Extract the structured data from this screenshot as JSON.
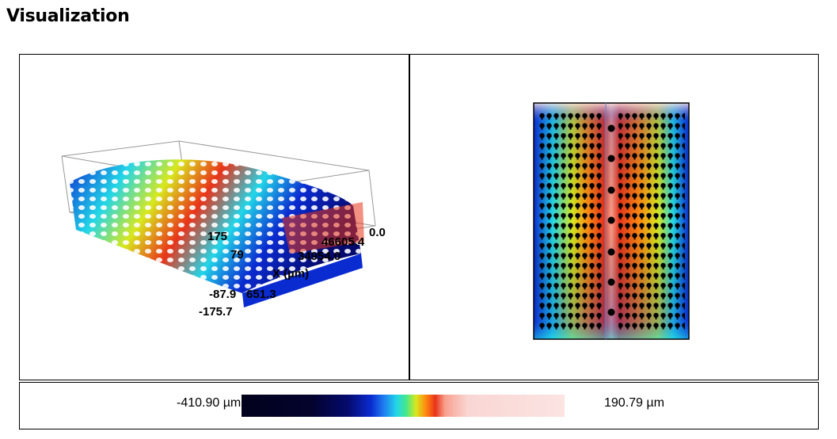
{
  "page": {
    "title": "Visualization"
  },
  "surface3d": {
    "labels": [
      "46605.4",
      "0.0",
      "34954.0",
      "X (µm)",
      "-87.9",
      "651.3",
      "-175.7",
      "175",
      "79"
    ]
  },
  "legend": {
    "min_label": "-410.90 µm",
    "max_label": "190.79 µm"
  },
  "colors": {
    "low": "#02021c",
    "mid_low": "#0a2bd0",
    "mid": "#46e88a",
    "mid_high": "#e8341a",
    "high": "#fbe4e2"
  }
}
